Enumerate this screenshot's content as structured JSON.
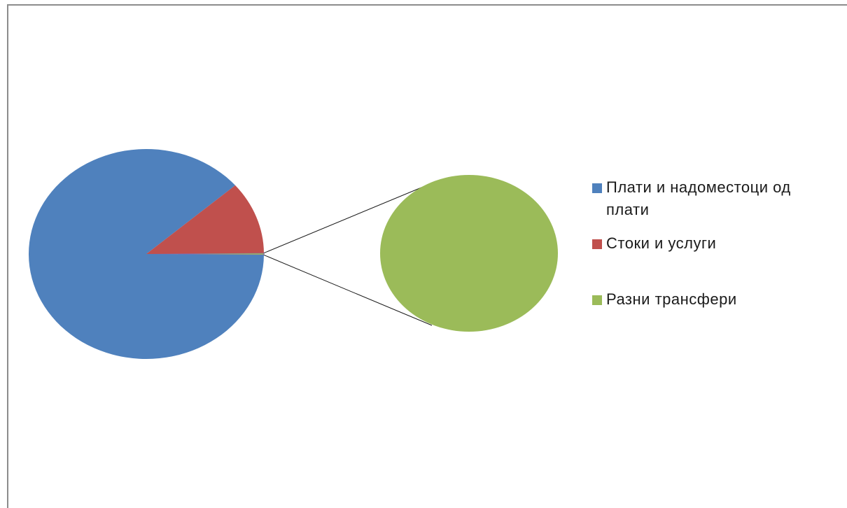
{
  "chart_data": {
    "type": "pie",
    "subtype": "bar-of-pie (pie of pie)",
    "categories": [
      "Плати и надоместоци од плати",
      "Стоки и услуги",
      "Разни трансфери"
    ],
    "values": [
      88.5,
      11.2,
      0.3
    ],
    "colors": [
      "#4f81bd",
      "#c0504d",
      "#9bbb59"
    ],
    "secondary_pie": {
      "categories": [
        "Разни трансфери"
      ],
      "values": [
        0.3
      ]
    },
    "legend_position": "right"
  },
  "legend": {
    "items": [
      {
        "label": "Плати и надоместоци од плати",
        "color": "#4f81bd"
      },
      {
        "label": "Стоки и услуги",
        "color": "#c0504d"
      },
      {
        "label": "Разни трансфери",
        "color": "#9bbb59"
      }
    ]
  }
}
